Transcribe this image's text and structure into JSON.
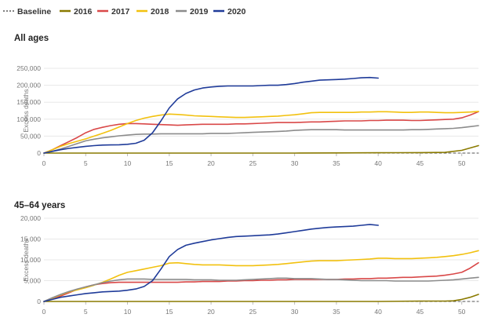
{
  "legend": [
    {
      "name": "Baseline",
      "color": "#555555",
      "dashed": true
    },
    {
      "name": "2016",
      "color": "#8a7a00"
    },
    {
      "name": "2017",
      "color": "#d94848"
    },
    {
      "name": "2018",
      "color": "#f2c10f"
    },
    {
      "name": "2019",
      "color": "#8c8c8c"
    },
    {
      "name": "2020",
      "color": "#1f3b99"
    }
  ],
  "chart_data": [
    {
      "type": "line",
      "title": "All ages",
      "ylabel": "Excess deaths",
      "xlabel": "",
      "xlim": [
        0,
        52
      ],
      "ylim": [
        0,
        250000
      ],
      "x_ticks": [
        "0",
        "5",
        "10",
        "15",
        "20",
        "25",
        "30",
        "35",
        "40",
        "45",
        "50"
      ],
      "y_ticks": [
        "0",
        "50,000",
        "100,000",
        "150,000",
        "200,000",
        "250,000"
      ],
      "grid": true,
      "series": [
        {
          "name": "Baseline",
          "x": [
            0,
            52
          ],
          "values": [
            0,
            0
          ]
        },
        {
          "name": "2016",
          "x": [
            0,
            5,
            10,
            15,
            20,
            25,
            30,
            35,
            40,
            45,
            48,
            50,
            52
          ],
          "values": [
            0,
            0,
            0,
            0,
            0,
            0,
            0,
            500,
            1000,
            1500,
            2000,
            8000,
            22000
          ]
        },
        {
          "name": "2017",
          "x": [
            0,
            1,
            2,
            3,
            4,
            5,
            6,
            7,
            8,
            9,
            10,
            11,
            12,
            13,
            14,
            15,
            16,
            17,
            18,
            19,
            20,
            21,
            22,
            23,
            24,
            25,
            26,
            27,
            28,
            29,
            30,
            31,
            32,
            33,
            34,
            35,
            36,
            37,
            38,
            39,
            40,
            41,
            42,
            43,
            44,
            45,
            46,
            47,
            48,
            49,
            50,
            51,
            52
          ],
          "values": [
            0,
            10000,
            22000,
            34000,
            46000,
            60000,
            70000,
            76000,
            81000,
            85000,
            87000,
            87000,
            86000,
            85000,
            84000,
            83000,
            82000,
            83000,
            84000,
            85000,
            85000,
            85000,
            85000,
            86000,
            86000,
            87000,
            88000,
            89000,
            90000,
            90000,
            90000,
            91000,
            92000,
            92000,
            93000,
            94000,
            95000,
            95000,
            95000,
            96000,
            96000,
            97000,
            97000,
            97000,
            96000,
            96000,
            97000,
            98000,
            99000,
            100000,
            104000,
            112000,
            122000
          ]
        },
        {
          "name": "2018",
          "x": [
            0,
            1,
            2,
            3,
            4,
            5,
            6,
            7,
            8,
            9,
            10,
            11,
            12,
            13,
            14,
            15,
            16,
            17,
            18,
            19,
            20,
            21,
            22,
            23,
            24,
            25,
            26,
            27,
            28,
            29,
            30,
            31,
            32,
            33,
            34,
            35,
            36,
            37,
            38,
            39,
            40,
            41,
            42,
            43,
            44,
            45,
            46,
            47,
            48,
            49,
            50,
            51,
            52
          ],
          "values": [
            0,
            10000,
            20000,
            28000,
            35000,
            42000,
            50000,
            58000,
            67000,
            77000,
            87000,
            96000,
            103000,
            108000,
            112000,
            115000,
            114000,
            112000,
            110000,
            109000,
            108000,
            107000,
            106000,
            105000,
            105000,
            106000,
            107000,
            108000,
            109000,
            111000,
            113000,
            116000,
            119000,
            120000,
            120000,
            120000,
            120000,
            120000,
            121000,
            121000,
            122000,
            122000,
            121000,
            120000,
            120000,
            121000,
            121000,
            120000,
            119000,
            119000,
            120000,
            121000,
            123000
          ]
        },
        {
          "name": "2019",
          "x": [
            0,
            1,
            2,
            3,
            4,
            5,
            6,
            7,
            8,
            9,
            10,
            11,
            12,
            13,
            14,
            15,
            16,
            17,
            18,
            19,
            20,
            21,
            22,
            23,
            24,
            25,
            26,
            27,
            28,
            29,
            30,
            31,
            32,
            33,
            34,
            35,
            36,
            37,
            38,
            39,
            40,
            41,
            42,
            43,
            44,
            45,
            46,
            47,
            48,
            49,
            50,
            51,
            52
          ],
          "values": [
            0,
            5000,
            12000,
            20000,
            28000,
            36000,
            41000,
            45000,
            48000,
            51000,
            53000,
            55000,
            56000,
            56000,
            57000,
            57000,
            57000,
            57000,
            57000,
            57000,
            58000,
            58000,
            58000,
            59000,
            60000,
            61000,
            62000,
            63000,
            64000,
            65000,
            67000,
            68000,
            69000,
            69000,
            69000,
            69000,
            68000,
            68000,
            68000,
            68000,
            68000,
            68000,
            68000,
            68000,
            69000,
            69000,
            70000,
            71000,
            72000,
            73000,
            75000,
            78000,
            81000
          ]
        },
        {
          "name": "2020",
          "x": [
            0,
            1,
            2,
            3,
            4,
            5,
            6,
            7,
            8,
            9,
            10,
            11,
            12,
            13,
            14,
            15,
            16,
            17,
            18,
            19,
            20,
            21,
            22,
            23,
            24,
            25,
            26,
            27,
            28,
            29,
            30,
            31,
            32,
            33,
            34,
            35,
            36,
            37,
            38,
            39,
            40
          ],
          "values": [
            0,
            5000,
            10000,
            14000,
            17000,
            20000,
            22000,
            23500,
            24000,
            24500,
            26000,
            29000,
            38000,
            60000,
            95000,
            133000,
            160000,
            176000,
            186000,
            192000,
            195000,
            197000,
            198000,
            198000,
            198000,
            198000,
            199000,
            200000,
            200000,
            202000,
            205000,
            209000,
            212000,
            215000,
            216000,
            217000,
            218000,
            220000,
            222000,
            223000,
            221000
          ]
        }
      ]
    },
    {
      "type": "line",
      "title": "45–64 years",
      "ylabel": "Excess deaths",
      "xlabel": "",
      "xlim": [
        0,
        52
      ],
      "ylim": [
        0,
        20000
      ],
      "x_ticks": [
        "0",
        "5",
        "10",
        "15",
        "20",
        "25",
        "30",
        "35",
        "40",
        "45",
        "50"
      ],
      "y_ticks": [
        "0",
        "5,000",
        "10,000",
        "15,000",
        "20,000"
      ],
      "grid": true,
      "series": [
        {
          "name": "Baseline",
          "x": [
            0,
            52
          ],
          "values": [
            0,
            0
          ]
        },
        {
          "name": "2016",
          "x": [
            0,
            5,
            10,
            15,
            20,
            25,
            30,
            35,
            40,
            45,
            48,
            49,
            50,
            51,
            52
          ],
          "values": [
            0,
            0,
            0,
            0,
            0,
            0,
            0,
            0,
            0,
            100,
            100,
            150,
            500,
            1000,
            1700
          ]
        },
        {
          "name": "2017",
          "x": [
            0,
            1,
            2,
            3,
            4,
            5,
            6,
            7,
            8,
            9,
            10,
            11,
            12,
            13,
            14,
            15,
            16,
            17,
            18,
            19,
            20,
            21,
            22,
            23,
            24,
            25,
            26,
            27,
            28,
            29,
            30,
            31,
            32,
            33,
            34,
            35,
            36,
            37,
            38,
            39,
            40,
            41,
            42,
            43,
            44,
            45,
            46,
            47,
            48,
            49,
            50,
            51,
            52
          ],
          "values": [
            0,
            600,
            1300,
            2100,
            2900,
            3500,
            4000,
            4300,
            4500,
            4600,
            4600,
            4600,
            4600,
            4600,
            4600,
            4600,
            4600,
            4700,
            4700,
            4800,
            4800,
            4800,
            4900,
            4900,
            5000,
            5000,
            5100,
            5100,
            5200,
            5200,
            5300,
            5300,
            5300,
            5300,
            5300,
            5300,
            5400,
            5400,
            5500,
            5500,
            5600,
            5600,
            5700,
            5800,
            5800,
            5900,
            6000,
            6100,
            6300,
            6600,
            7000,
            8000,
            9300
          ]
        },
        {
          "name": "2018",
          "x": [
            0,
            1,
            2,
            3,
            4,
            5,
            6,
            7,
            8,
            9,
            10,
            11,
            12,
            13,
            14,
            15,
            16,
            17,
            18,
            19,
            20,
            21,
            22,
            23,
            24,
            25,
            26,
            27,
            28,
            29,
            30,
            31,
            32,
            33,
            34,
            35,
            36,
            37,
            38,
            39,
            40,
            41,
            42,
            43,
            44,
            45,
            46,
            47,
            48,
            49,
            50,
            51,
            52
          ],
          "values": [
            0,
            800,
            1600,
            2300,
            2800,
            3300,
            3900,
            4600,
            5400,
            6300,
            7000,
            7400,
            7800,
            8200,
            8600,
            9200,
            9300,
            9100,
            8900,
            8800,
            8800,
            8800,
            8700,
            8600,
            8600,
            8600,
            8700,
            8800,
            8900,
            9100,
            9300,
            9500,
            9700,
            9800,
            9800,
            9800,
            9900,
            10000,
            10100,
            10200,
            10400,
            10400,
            10300,
            10300,
            10300,
            10400,
            10500,
            10600,
            10800,
            11000,
            11300,
            11700,
            12200
          ]
        },
        {
          "name": "2019",
          "x": [
            0,
            1,
            2,
            3,
            4,
            5,
            6,
            7,
            8,
            9,
            10,
            11,
            12,
            13,
            14,
            15,
            16,
            17,
            18,
            19,
            20,
            21,
            22,
            23,
            24,
            25,
            26,
            27,
            28,
            29,
            30,
            31,
            32,
            33,
            34,
            35,
            36,
            37,
            38,
            39,
            40,
            41,
            42,
            43,
            44,
            45,
            46,
            47,
            48,
            49,
            50,
            51,
            52
          ],
          "values": [
            0,
            900,
            1700,
            2400,
            3000,
            3500,
            4000,
            4500,
            4900,
            5200,
            5400,
            5400,
            5400,
            5300,
            5300,
            5300,
            5300,
            5300,
            5200,
            5200,
            5200,
            5100,
            5100,
            5100,
            5200,
            5300,
            5400,
            5500,
            5600,
            5600,
            5500,
            5500,
            5500,
            5400,
            5300,
            5300,
            5200,
            5100,
            5000,
            5000,
            5000,
            5000,
            4900,
            4900,
            4900,
            4900,
            4900,
            5000,
            5100,
            5200,
            5400,
            5600,
            5800
          ]
        },
        {
          "name": "2020",
          "x": [
            0,
            1,
            2,
            3,
            4,
            5,
            6,
            7,
            8,
            9,
            10,
            11,
            12,
            13,
            14,
            15,
            16,
            17,
            18,
            19,
            20,
            21,
            22,
            23,
            24,
            25,
            26,
            27,
            28,
            29,
            30,
            31,
            32,
            33,
            34,
            35,
            36,
            37,
            38,
            39,
            40
          ],
          "values": [
            0,
            500,
            1000,
            1300,
            1600,
            1900,
            2100,
            2300,
            2400,
            2500,
            2700,
            3000,
            3600,
            5000,
            7800,
            10800,
            12500,
            13500,
            14000,
            14400,
            14800,
            15100,
            15400,
            15600,
            15700,
            15800,
            15900,
            16000,
            16200,
            16500,
            16800,
            17100,
            17400,
            17600,
            17800,
            17900,
            18000,
            18100,
            18300,
            18500,
            18300
          ]
        }
      ]
    }
  ]
}
